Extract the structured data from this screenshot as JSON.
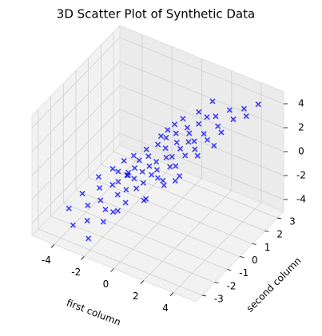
{
  "chart_data": {
    "type": "scatter3d",
    "title": "3D Scatter Plot of Synthetic Data",
    "xlabel": "first column",
    "ylabel": "second column",
    "marker": "x",
    "color": "#0000ff",
    "grid": true,
    "xlim": [
      -5.5,
      5.5
    ],
    "xticks": [
      -4,
      -2,
      0,
      2,
      4
    ],
    "ylim": [
      -3.5,
      3.5
    ],
    "yticks": [
      -3,
      -2,
      -1,
      0,
      1,
      2,
      3
    ],
    "zlim": [
      -5,
      5
    ],
    "zticks": [
      -4,
      -2,
      0,
      2,
      4
    ],
    "x": [
      -4.2,
      -3.8,
      -3.5,
      -3.3,
      -3.1,
      -2.9,
      -2.8,
      -2.6,
      -2.5,
      -2.3,
      -2.2,
      -2.1,
      -2.0,
      -1.9,
      -1.8,
      -1.7,
      -1.6,
      -1.5,
      -1.4,
      -1.3,
      -1.2,
      -1.1,
      -1.0,
      -0.9,
      -0.8,
      -0.7,
      -0.6,
      -0.5,
      -0.4,
      -0.3,
      -0.2,
      -0.1,
      0.0,
      0.1,
      0.2,
      0.3,
      0.4,
      0.5,
      0.6,
      0.7,
      0.8,
      0.9,
      1.0,
      1.1,
      1.2,
      1.3,
      1.4,
      1.5,
      1.6,
      1.7,
      1.9,
      2.0,
      2.2,
      2.4,
      2.6,
      2.8,
      3.0,
      3.3,
      3.6,
      4.0,
      4.3,
      -1.5,
      -0.8,
      0.3,
      1.1,
      -2.4,
      0.9,
      1.8,
      -0.3,
      2.5,
      -1.0,
      0.5,
      1.4,
      -0.6,
      2.1,
      3.1,
      -3.0,
      -1.9,
      0.0,
      1.6
    ],
    "y": [
      -2.1,
      -1.5,
      -2.6,
      -0.8,
      -1.9,
      -1.2,
      -2.3,
      -0.5,
      -1.6,
      -2.8,
      -1.0,
      -0.2,
      -1.8,
      -0.9,
      -2.2,
      0.1,
      -1.3,
      -0.6,
      -1.9,
      -0.3,
      -1.1,
      0.4,
      -0.7,
      -1.5,
      0.2,
      -0.4,
      -1.0,
      0.6,
      -0.2,
      -0.8,
      0.9,
      0.0,
      -0.5,
      0.5,
      -0.3,
      1.1,
      0.2,
      -0.6,
      0.8,
      0.3,
      1.4,
      -0.1,
      0.6,
      1.2,
      0.0,
      0.9,
      1.6,
      0.4,
      1.0,
      1.9,
      0.7,
      1.3,
      2.0,
      1.1,
      1.7,
      2.4,
      1.5,
      2.1,
      2.6,
      2.3,
      2.9,
      0.3,
      1.2,
      -1.3,
      -0.9,
      0.5,
      2.2,
      -0.4,
      1.7,
      0.2,
      -2.0,
      -1.7,
      2.7,
      1.5,
      -1.1,
      0.8,
      0.4,
      -0.2,
      2.0,
      -1.4
    ],
    "z": [
      -3.6,
      -2.8,
      -4.1,
      -1.9,
      -3.0,
      -2.2,
      -3.7,
      -1.2,
      -2.6,
      -4.4,
      -1.8,
      -0.6,
      -2.9,
      -1.5,
      -3.4,
      -0.3,
      -2.0,
      -1.1,
      -2.7,
      -0.7,
      -1.6,
      0.2,
      -1.0,
      -2.1,
      0.0,
      -0.6,
      -1.3,
      0.7,
      -0.2,
      -0.9,
      1.1,
      0.1,
      -0.4,
      0.8,
      -0.1,
      1.5,
      0.5,
      -0.3,
      1.2,
      0.6,
      1.9,
      0.3,
      1.1,
      1.8,
      0.4,
      1.5,
      2.3,
      1.0,
      1.6,
      2.7,
      1.4,
      2.1,
      2.9,
      2.0,
      2.6,
      3.3,
      2.5,
      3.1,
      3.6,
      3.5,
      4.0,
      -0.8,
      0.6,
      -1.4,
      0.1,
      -2.5,
      2.4,
      0.3,
      1.3,
      1.7,
      -2.3,
      -1.0,
      3.0,
      0.9,
      0.8,
      2.2,
      -2.6,
      -1.7,
      1.6,
      0.5
    ]
  }
}
